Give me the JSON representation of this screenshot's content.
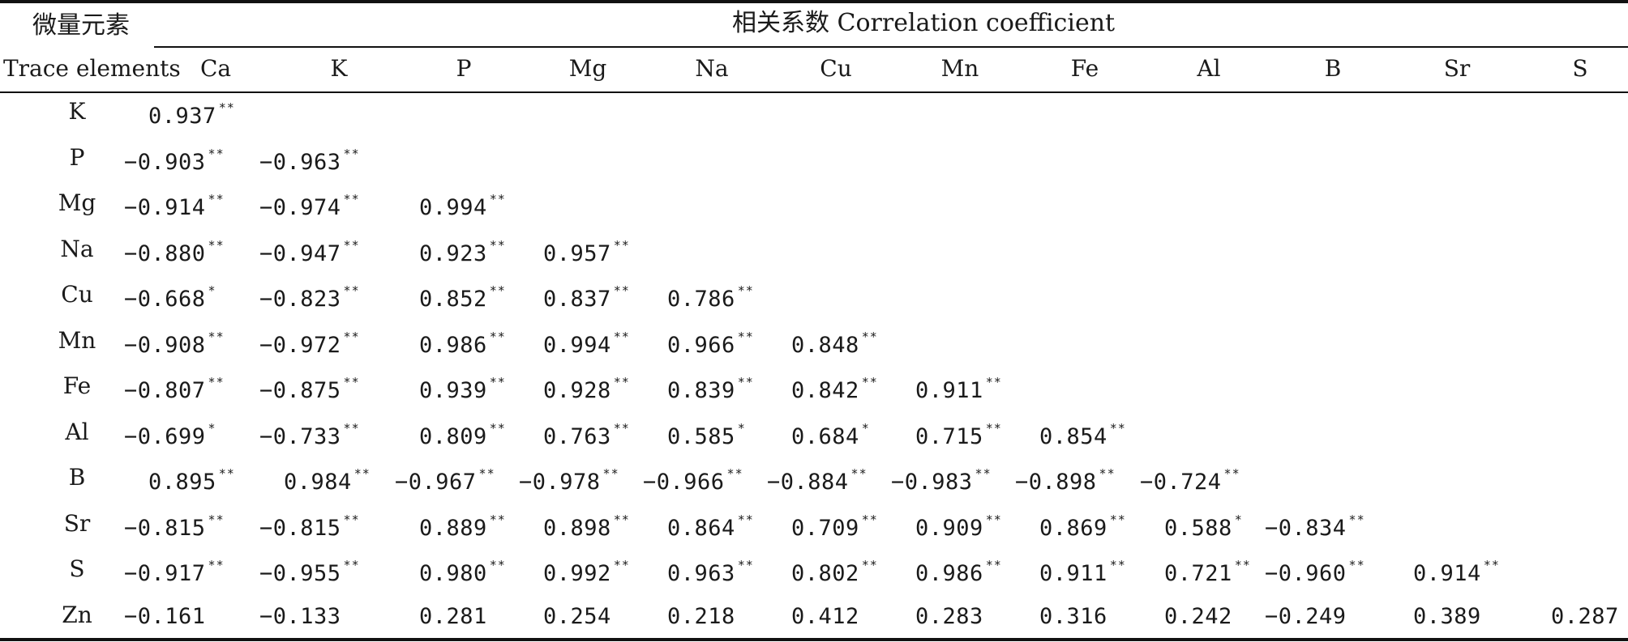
{
  "header": {
    "col0_cn": "微量元素",
    "col0_en": "Trace elements",
    "group_title": "相关系数 Correlation coefficient",
    "columns": [
      "Ca",
      "K",
      "P",
      "Mg",
      "Na",
      "Cu",
      "Mn",
      "Fe",
      "Al",
      "B",
      "Sr",
      "S"
    ]
  },
  "rows": [
    {
      "label": "K",
      "cells": [
        {
          "v": "0.937",
          "s": "**"
        }
      ]
    },
    {
      "label": "P",
      "cells": [
        {
          "v": "−0.903",
          "s": "**"
        },
        {
          "v": "−0.963",
          "s": "**"
        }
      ]
    },
    {
      "label": "Mg",
      "cells": [
        {
          "v": "−0.914",
          "s": "**"
        },
        {
          "v": "−0.974",
          "s": "**"
        },
        {
          "v": "0.994",
          "s": "**"
        }
      ]
    },
    {
      "label": "Na",
      "cells": [
        {
          "v": "−0.880",
          "s": "**"
        },
        {
          "v": "−0.947",
          "s": "**"
        },
        {
          "v": "0.923",
          "s": "**"
        },
        {
          "v": "0.957",
          "s": "**"
        }
      ]
    },
    {
      "label": "Cu",
      "cells": [
        {
          "v": "−0.668",
          "s": "*"
        },
        {
          "v": "−0.823",
          "s": "**"
        },
        {
          "v": "0.852",
          "s": "**"
        },
        {
          "v": "0.837",
          "s": "**"
        },
        {
          "v": "0.786",
          "s": "**"
        }
      ]
    },
    {
      "label": "Mn",
      "cells": [
        {
          "v": "−0.908",
          "s": "**"
        },
        {
          "v": "−0.972",
          "s": "**"
        },
        {
          "v": "0.986",
          "s": "**"
        },
        {
          "v": "0.994",
          "s": "**"
        },
        {
          "v": "0.966",
          "s": "**"
        },
        {
          "v": "0.848",
          "s": "**"
        }
      ]
    },
    {
      "label": "Fe",
      "cells": [
        {
          "v": "−0.807",
          "s": "**"
        },
        {
          "v": "−0.875",
          "s": "**"
        },
        {
          "v": "0.939",
          "s": "**"
        },
        {
          "v": "0.928",
          "s": "**"
        },
        {
          "v": "0.839",
          "s": "**"
        },
        {
          "v": "0.842",
          "s": "**"
        },
        {
          "v": "0.911",
          "s": "**"
        }
      ]
    },
    {
      "label": "Al",
      "cells": [
        {
          "v": "−0.699",
          "s": "*"
        },
        {
          "v": "−0.733",
          "s": "**"
        },
        {
          "v": "0.809",
          "s": "**"
        },
        {
          "v": "0.763",
          "s": "**"
        },
        {
          "v": "0.585",
          "s": "*"
        },
        {
          "v": "0.684",
          "s": "*"
        },
        {
          "v": "0.715",
          "s": "**"
        },
        {
          "v": "0.854",
          "s": "**"
        }
      ]
    },
    {
      "label": "B",
      "cells": [
        {
          "v": "0.895",
          "s": "**"
        },
        {
          "v": "0.984",
          "s": "**"
        },
        {
          "v": "−0.967",
          "s": "**"
        },
        {
          "v": "−0.978",
          "s": "**"
        },
        {
          "v": "−0.966",
          "s": "**"
        },
        {
          "v": "−0.884",
          "s": "**"
        },
        {
          "v": "−0.983",
          "s": "**"
        },
        {
          "v": "−0.898",
          "s": "**"
        },
        {
          "v": "−0.724",
          "s": "**"
        }
      ]
    },
    {
      "label": "Sr",
      "cells": [
        {
          "v": "−0.815",
          "s": "**"
        },
        {
          "v": "−0.815",
          "s": "**"
        },
        {
          "v": "0.889",
          "s": "**"
        },
        {
          "v": "0.898",
          "s": "**"
        },
        {
          "v": "0.864",
          "s": "**"
        },
        {
          "v": "0.709",
          "s": "**"
        },
        {
          "v": "0.909",
          "s": "**"
        },
        {
          "v": "0.869",
          "s": "**"
        },
        {
          "v": "0.588",
          "s": "*"
        },
        {
          "v": "−0.834",
          "s": "**"
        }
      ]
    },
    {
      "label": "S",
      "cells": [
        {
          "v": "−0.917",
          "s": "**"
        },
        {
          "v": "−0.955",
          "s": "**"
        },
        {
          "v": "0.980",
          "s": "**"
        },
        {
          "v": "0.992",
          "s": "**"
        },
        {
          "v": "0.963",
          "s": "**"
        },
        {
          "v": "0.802",
          "s": "**"
        },
        {
          "v": "0.986",
          "s": "**"
        },
        {
          "v": "0.911",
          "s": "**"
        },
        {
          "v": "0.721",
          "s": "**"
        },
        {
          "v": "−0.960",
          "s": "**"
        },
        {
          "v": "0.914",
          "s": "**"
        }
      ]
    },
    {
      "label": "Zn",
      "cells": [
        {
          "v": "−0.161",
          "s": ""
        },
        {
          "v": "−0.133",
          "s": ""
        },
        {
          "v": "0.281",
          "s": ""
        },
        {
          "v": "0.254",
          "s": ""
        },
        {
          "v": "0.218",
          "s": ""
        },
        {
          "v": "0.412",
          "s": ""
        },
        {
          "v": "0.283",
          "s": ""
        },
        {
          "v": "0.316",
          "s": ""
        },
        {
          "v": "0.242",
          "s": ""
        },
        {
          "v": "−0.249",
          "s": ""
        },
        {
          "v": "0.389",
          "s": ""
        },
        {
          "v": "0.287",
          "s": ""
        }
      ]
    }
  ]
}
